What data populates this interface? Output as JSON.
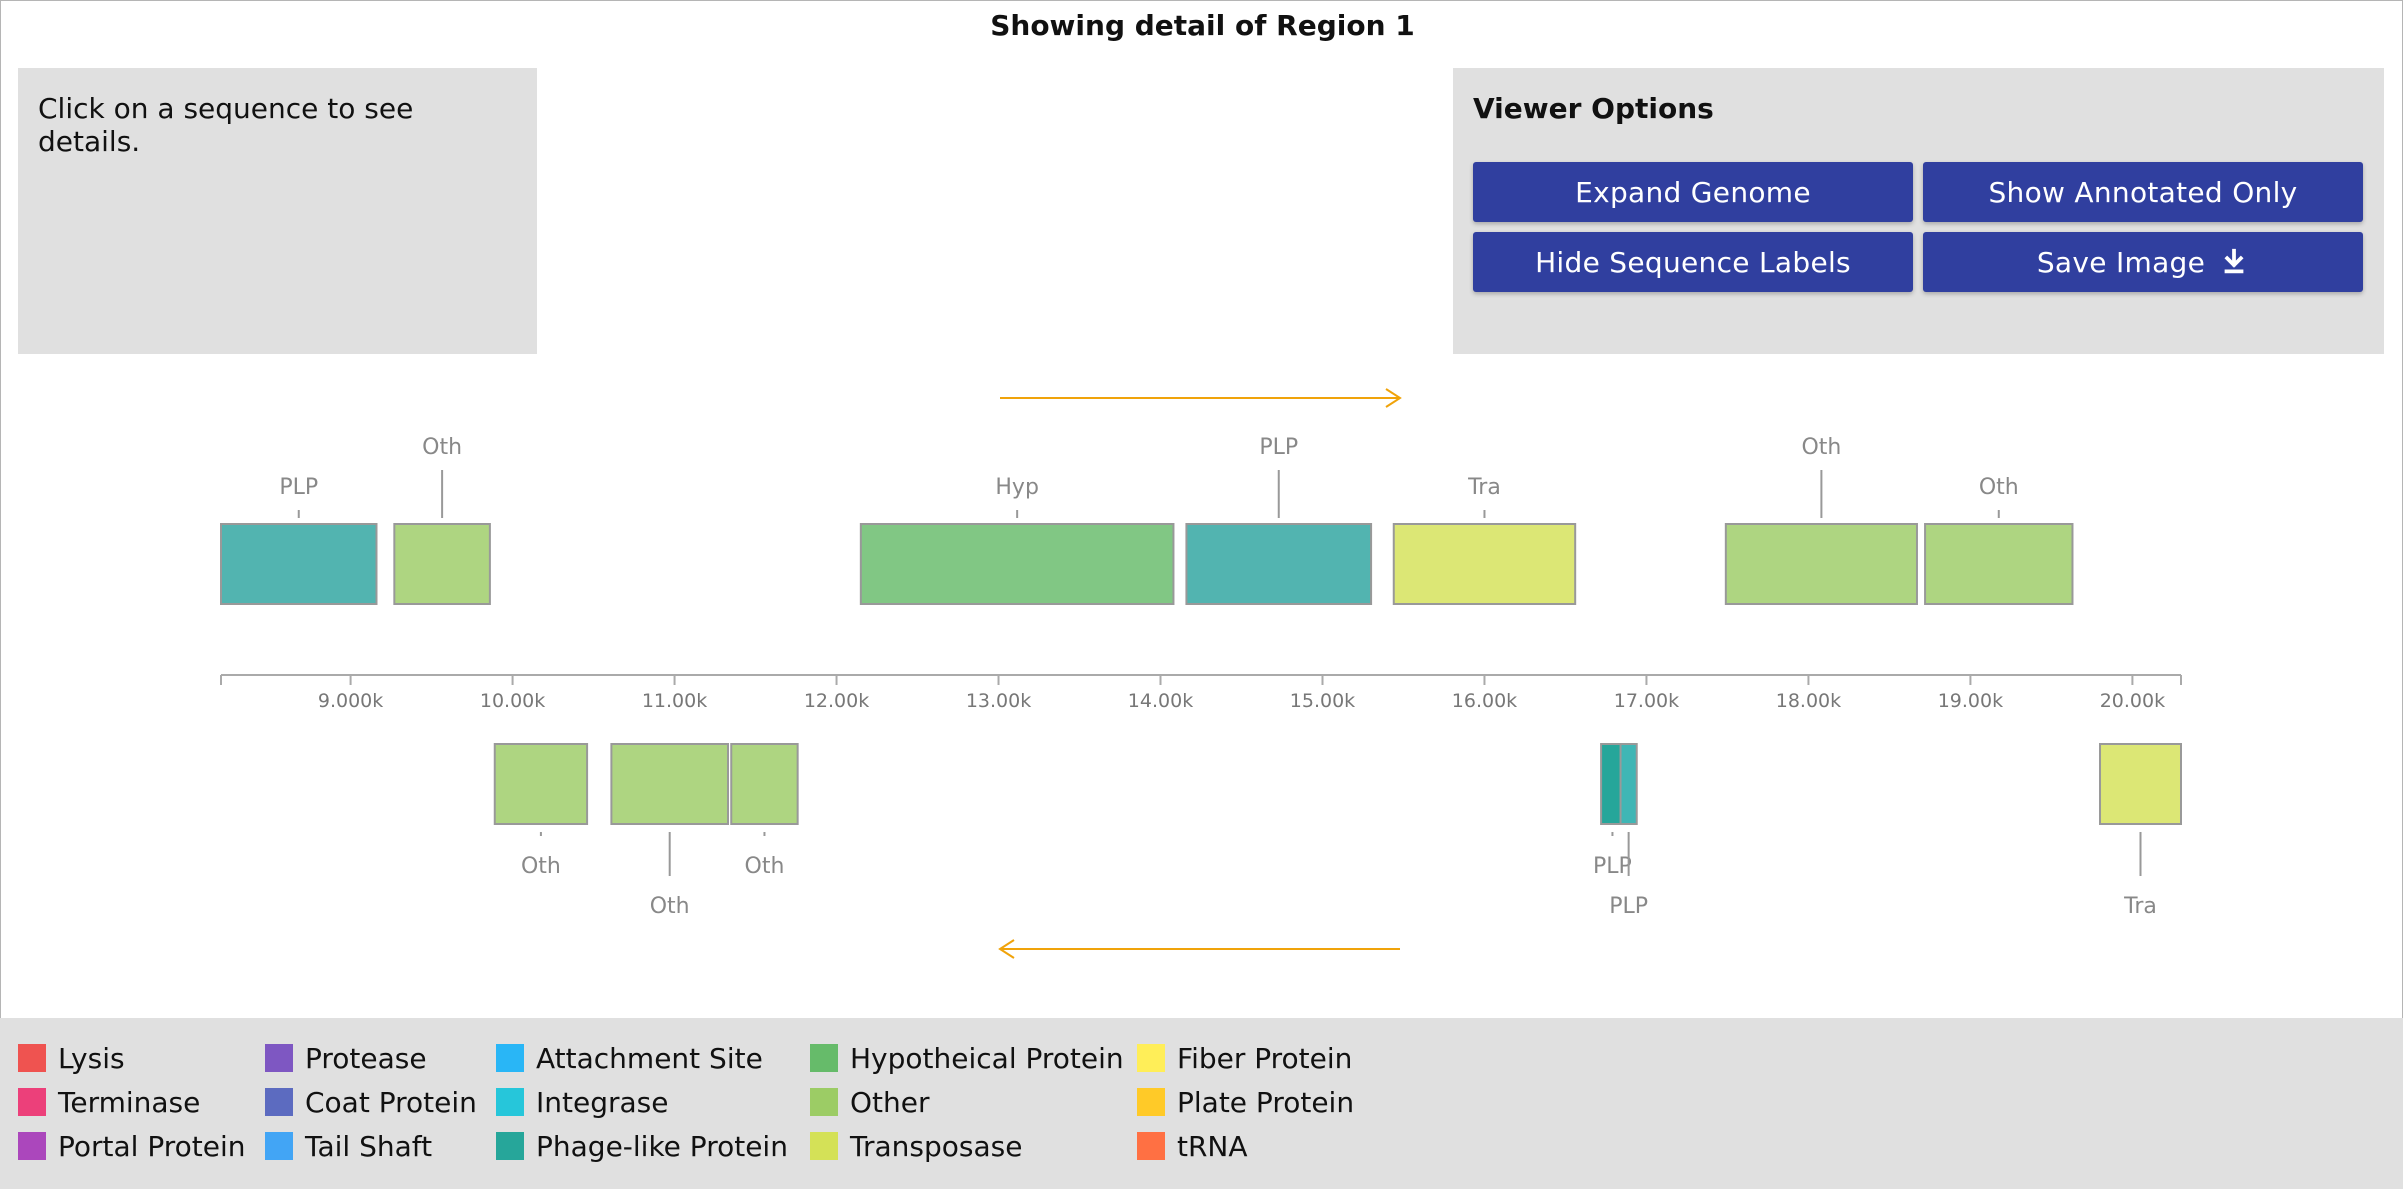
{
  "title": "Showing detail of Region 1",
  "details": {
    "text": "Click on a sequence to see details."
  },
  "viewer_options": {
    "title": "Viewer Options",
    "buttons": {
      "expand_genome": "Expand Genome",
      "show_annotated_only": "Show Annotated Only",
      "hide_sequence_labels": "Hide Sequence Labels",
      "save_image": "Save Image"
    },
    "save_icon": "download-icon"
  },
  "genome": {
    "axis": {
      "domain": [
        8200,
        20300
      ],
      "ticks": [
        {
          "value": 9000,
          "label": "9.000k"
        },
        {
          "value": 10000,
          "label": "10.00k"
        },
        {
          "value": 11000,
          "label": "11.00k"
        },
        {
          "value": 12000,
          "label": "12.00k"
        },
        {
          "value": 13000,
          "label": "13.00k"
        },
        {
          "value": 14000,
          "label": "14.00k"
        },
        {
          "value": 15000,
          "label": "15.00k"
        },
        {
          "value": 16000,
          "label": "16.00k"
        },
        {
          "value": 17000,
          "label": "17.00k"
        },
        {
          "value": 18000,
          "label": "18.00k"
        },
        {
          "value": 19000,
          "label": "19.00k"
        },
        {
          "value": 20000,
          "label": "20.00k"
        }
      ]
    },
    "strand_colors": {
      "arrow": "#f0a30a"
    },
    "forward_features": [
      {
        "start": 8200,
        "end": 9160,
        "label": "PLP",
        "category": "Phage-like Protein",
        "color": "#52b4b0",
        "label_tier": "near"
      },
      {
        "start": 9270,
        "end": 9860,
        "label": "Oth",
        "category": "Other",
        "color": "#aed581",
        "label_tier": "far"
      },
      {
        "start": 12150,
        "end": 14080,
        "label": "Hyp",
        "category": "Hypotheical Protein",
        "color": "#81c784",
        "label_tier": "near"
      },
      {
        "start": 14160,
        "end": 15300,
        "label": "PLP",
        "category": "Phage-like Protein",
        "color": "#52b4b0",
        "label_tier": "far"
      },
      {
        "start": 15440,
        "end": 16560,
        "label": "Tra",
        "category": "Transposase",
        "color": "#dce775",
        "label_tier": "near"
      },
      {
        "start": 17490,
        "end": 18670,
        "label": "Oth",
        "category": "Other",
        "color": "#aed581",
        "label_tier": "far"
      },
      {
        "start": 18720,
        "end": 19630,
        "label": "Oth",
        "category": "Other",
        "color": "#aed581",
        "label_tier": "near"
      }
    ],
    "reverse_features": [
      {
        "start": 9890,
        "end": 10460,
        "label": "Oth",
        "category": "Other",
        "color": "#aed581",
        "label_tier": "near"
      },
      {
        "start": 10610,
        "end": 11330,
        "label": "Oth",
        "category": "Other",
        "color": "#aed581",
        "label_tier": "far"
      },
      {
        "start": 11350,
        "end": 11760,
        "label": "Oth",
        "category": "Other",
        "color": "#aed581",
        "label_tier": "near"
      },
      {
        "start": 16720,
        "end": 16860,
        "label": "PLP",
        "category": "Phage-like Protein",
        "color": "#26a69a",
        "label_tier": "near"
      },
      {
        "start": 16840,
        "end": 16940,
        "label": "PLP",
        "category": "Phage-like Protein",
        "color": "#3fb6b5",
        "label_tier": "far"
      },
      {
        "start": 19800,
        "end": 20300,
        "label": "Tra",
        "category": "Transposase",
        "color": "#dce775",
        "label_tier": "far"
      }
    ]
  },
  "legend": {
    "columns": [
      [
        {
          "label": "Lysis",
          "color": "#ef5350"
        },
        {
          "label": "Terminase",
          "color": "#ec407a"
        },
        {
          "label": "Portal Protein",
          "color": "#ab47bc"
        }
      ],
      [
        {
          "label": "Protease",
          "color": "#7e57c2"
        },
        {
          "label": "Coat Protein",
          "color": "#5c6bc0"
        },
        {
          "label": "Tail Shaft",
          "color": "#42a5f5"
        }
      ],
      [
        {
          "label": "Attachment Site",
          "color": "#29b6f6"
        },
        {
          "label": "Integrase",
          "color": "#26c6da"
        },
        {
          "label": "Phage-like Protein",
          "color": "#26a69a"
        }
      ],
      [
        {
          "label": "Hypotheical Protein",
          "color": "#66bb6a"
        },
        {
          "label": "Other",
          "color": "#9ccc65"
        },
        {
          "label": "Transposase",
          "color": "#d4e157"
        }
      ],
      [
        {
          "label": "Fiber Protein",
          "color": "#ffee58"
        },
        {
          "label": "Plate Protein",
          "color": "#ffca28"
        },
        {
          "label": "tRNA",
          "color": "#ff7043"
        }
      ]
    ]
  }
}
